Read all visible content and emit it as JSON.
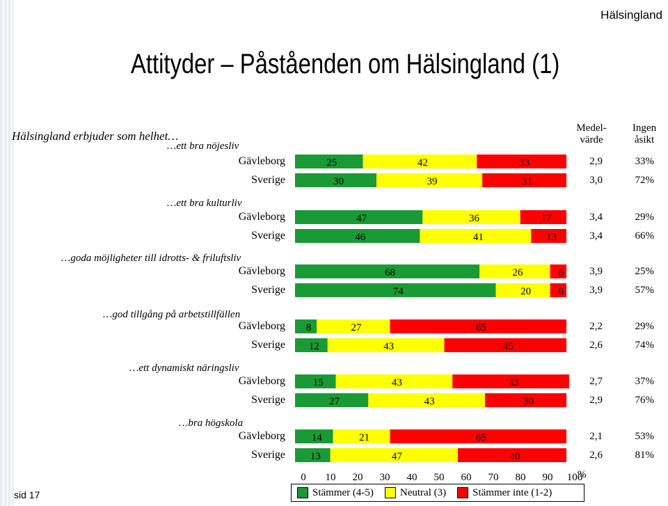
{
  "header": {
    "brand": "Hälsingland",
    "title": "Attityder – Påståenden om Hälsingland (1)",
    "page": "sid 17"
  },
  "columns": {
    "mean_l1": "Medel-",
    "mean_l2": "värde",
    "none_l1": "Ingen",
    "none_l2": "åsikt"
  },
  "intro": "Hälsingland erbjuder som helhet…",
  "colors": {
    "agree": "#1a9a35",
    "neutral": "#ffff00",
    "disagree": "#ff0000"
  },
  "chart_data": {
    "type": "bar",
    "stacked": true,
    "orientation": "horizontal",
    "xlim": [
      0,
      100
    ],
    "xticks": [
      "0",
      "10",
      "20",
      "30",
      "40",
      "50",
      "60",
      "70",
      "80",
      "90",
      "100"
    ],
    "xunit": "%",
    "legend": [
      "Stämmer (4-5)",
      "Neutral (3)",
      "Stämmer inte (1-2)"
    ],
    "groups": [
      {
        "label": "…ett bra nöjesliv",
        "rows": [
          {
            "label": "Gävleborg",
            "values": [
              25,
              42,
              33
            ],
            "mean": "2,9",
            "no_opinion": "33%"
          },
          {
            "label": "Sverige",
            "values": [
              30,
              39,
              31
            ],
            "mean": "3,0",
            "no_opinion": "72%"
          }
        ]
      },
      {
        "label": "…ett bra kulturliv",
        "rows": [
          {
            "label": "Gävleborg",
            "values": [
              47,
              36,
              17
            ],
            "mean": "3,4",
            "no_opinion": "29%"
          },
          {
            "label": "Sverige",
            "values": [
              46,
              41,
              13
            ],
            "mean": "3,4",
            "no_opinion": "66%"
          }
        ]
      },
      {
        "label": "…goda möjligheter till idrotts- & friluftsliv",
        "rows": [
          {
            "label": "Gävleborg",
            "values": [
              68,
              26,
              6
            ],
            "mean": "3,9",
            "no_opinion": "25%"
          },
          {
            "label": "Sverige",
            "values": [
              74,
              20,
              6
            ],
            "mean": "3,9",
            "no_opinion": "57%"
          }
        ]
      },
      {
        "label": "…god tillgång på arbetstillfällen",
        "rows": [
          {
            "label": "Gävleborg",
            "values": [
              8,
              27,
              65
            ],
            "mean": "2,2",
            "no_opinion": "29%"
          },
          {
            "label": "Sverige",
            "values": [
              12,
              43,
              45
            ],
            "mean": "2,6",
            "no_opinion": "74%"
          }
        ]
      },
      {
        "label": "…ett dynamiskt näringsliv",
        "rows": [
          {
            "label": "Gävleborg",
            "values": [
              15,
              43,
              43
            ],
            "mean": "2,7",
            "no_opinion": "37%"
          },
          {
            "label": "Sverige",
            "values": [
              27,
              43,
              30
            ],
            "mean": "2,9",
            "no_opinion": "76%"
          }
        ]
      },
      {
        "label": "…bra högskola",
        "rows": [
          {
            "label": "Gävleborg",
            "values": [
              14,
              21,
              65
            ],
            "mean": "2,1",
            "no_opinion": "53%"
          },
          {
            "label": "Sverige",
            "values": [
              13,
              47,
              40
            ],
            "mean": "2,6",
            "no_opinion": "81%"
          }
        ]
      }
    ]
  }
}
